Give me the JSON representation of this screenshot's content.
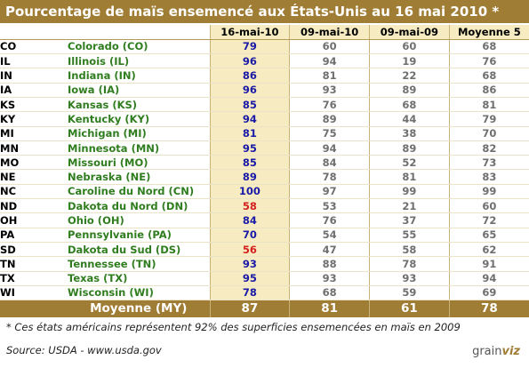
{
  "title": "Pourcentage de maïs ensemencé aux États-Unis au 16 mai 2010 *",
  "chart_data": {
    "type": "table",
    "columns": [
      "16-mai-10",
      "09-mai-10",
      "09-mai-09",
      "Moyenne 5"
    ],
    "rows": [
      {
        "abbr": "CO",
        "name": "Colorado (CO)",
        "values": [
          79,
          60,
          60,
          68
        ]
      },
      {
        "abbr": "IL",
        "name": "Illinois (IL)",
        "values": [
          96,
          94,
          19,
          76
        ]
      },
      {
        "abbr": "IN",
        "name": "Indiana (IN)",
        "values": [
          86,
          81,
          22,
          68
        ]
      },
      {
        "abbr": "IA",
        "name": "Iowa (IA)",
        "values": [
          96,
          93,
          89,
          86
        ]
      },
      {
        "abbr": "KS",
        "name": "Kansas (KS)",
        "values": [
          85,
          76,
          68,
          81
        ]
      },
      {
        "abbr": "KY",
        "name": "Kentucky (KY)",
        "values": [
          94,
          89,
          44,
          79
        ]
      },
      {
        "abbr": "MI",
        "name": "Michigan (MI)",
        "values": [
          81,
          75,
          38,
          70
        ]
      },
      {
        "abbr": "MN",
        "name": "Minnesota (MN)",
        "values": [
          95,
          94,
          89,
          82
        ]
      },
      {
        "abbr": "MO",
        "name": "Missouri (MO)",
        "values": [
          85,
          84,
          52,
          73
        ]
      },
      {
        "abbr": "NE",
        "name": "Nebraska (NE)",
        "values": [
          89,
          78,
          81,
          83
        ]
      },
      {
        "abbr": "NC",
        "name": "Caroline du Nord (CN)",
        "values": [
          100,
          97,
          99,
          99
        ]
      },
      {
        "abbr": "ND",
        "name": "Dakota du Nord (DN)",
        "values": [
          58,
          53,
          21,
          60
        ]
      },
      {
        "abbr": "OH",
        "name": "Ohio (OH)",
        "values": [
          84,
          76,
          37,
          72
        ]
      },
      {
        "abbr": "PA",
        "name": "Pennsylvanie (PA)",
        "values": [
          70,
          54,
          55,
          65
        ]
      },
      {
        "abbr": "SD",
        "name": "Dakota du Sud (DS)",
        "values": [
          56,
          47,
          58,
          62
        ]
      },
      {
        "abbr": "TN",
        "name": "Tennessee (TN)",
        "values": [
          93,
          88,
          78,
          91
        ]
      },
      {
        "abbr": "TX",
        "name": "Texas (TX)",
        "values": [
          95,
          93,
          93,
          94
        ]
      },
      {
        "abbr": "WI",
        "name": "Wisconsin (WI)",
        "values": [
          78,
          68,
          59,
          69
        ]
      }
    ],
    "average": {
      "label": "Moyenne (MY)",
      "values": [
        87,
        81,
        61,
        78
      ]
    }
  },
  "footnote": "* Ces états américains représentent 92% des superficies ensemencées en maïs en 2009",
  "source": "Source: USDA - www.usda.gov",
  "logo": {
    "part1": "grain",
    "part2": "viz"
  },
  "colors": {
    "header_gold": "#a07d35",
    "highlight_cream": "#f6ebc1",
    "state_name_green": "#2f7d1f",
    "current_value_blue": "#1a1aa8",
    "low_value_red": "#d42020",
    "past_value_gray": "#6f6f6f"
  }
}
